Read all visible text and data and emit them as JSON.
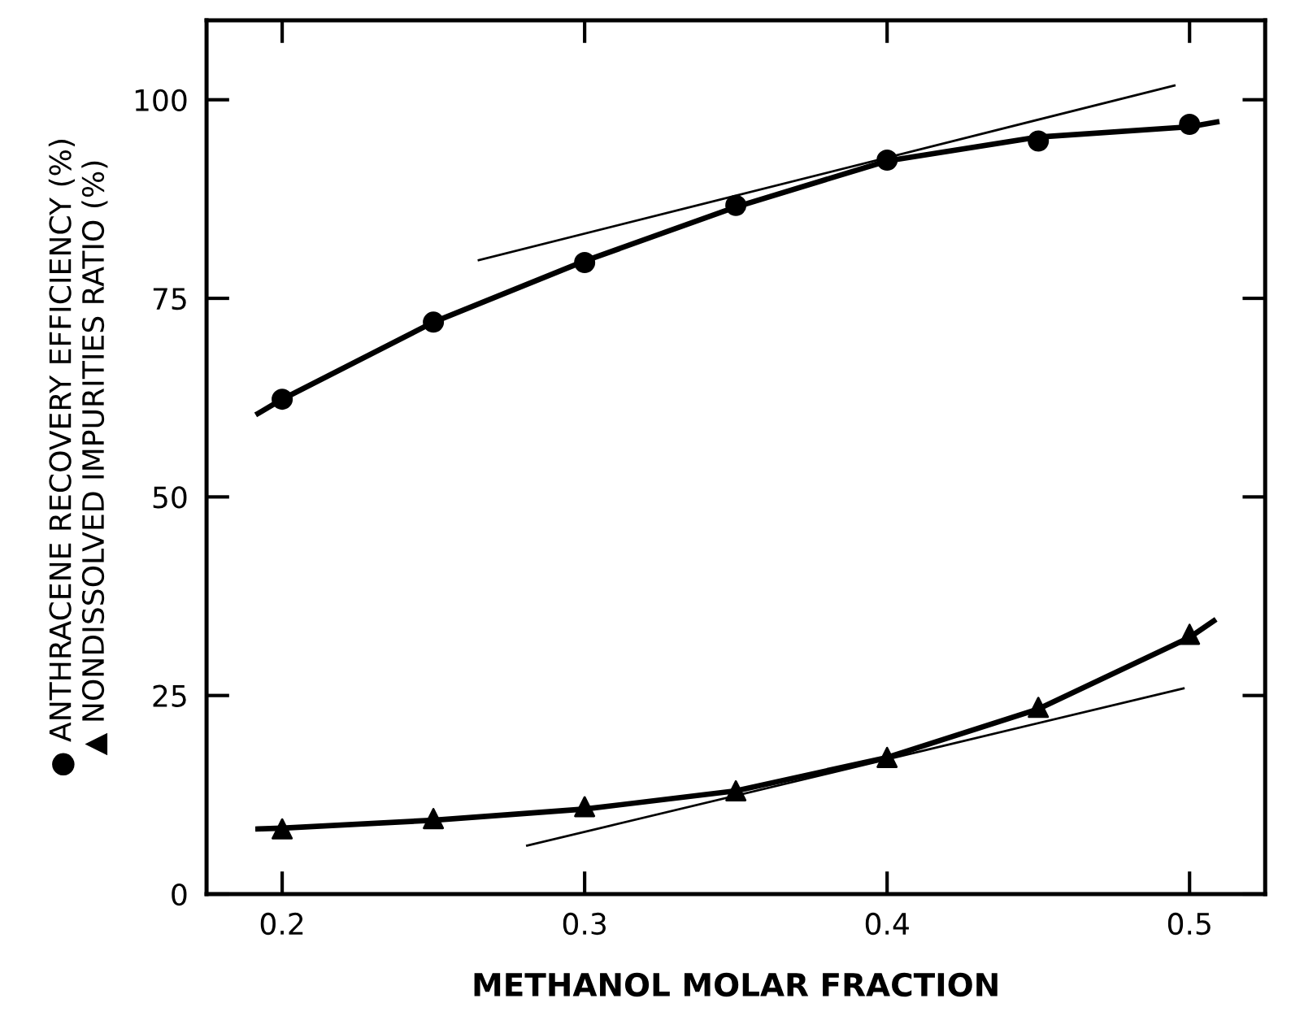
{
  "chart_data": {
    "type": "scatter",
    "xlabel": "METHANOL MOLAR FRACTION",
    "ylabel": "● ANTHRACENE RECOVERY EFFICIENCY (%)\n▲ NONDISSOLVED IMPURITIES RATIO (%)",
    "xlim": [
      0.175,
      0.525
    ],
    "xticks": [
      0.2,
      0.3,
      0.4,
      0.5
    ],
    "ylim": [
      0,
      110
    ],
    "yticks": [
      0,
      25,
      50,
      75,
      100
    ],
    "grid": false,
    "legend": false,
    "series": [
      {
        "marker": "circle",
        "color": "#000000",
        "x": [
          0.2,
          0.25,
          0.3,
          0.35,
          0.4,
          0.45,
          0.5
        ],
        "values": [
          62.3,
          72,
          79.5,
          86.7,
          92.4,
          94.8,
          96.9
        ]
      },
      {
        "marker": "triangle",
        "color": "#000000",
        "x": [
          0.2,
          0.25,
          0.3,
          0.35,
          0.4,
          0.45,
          0.5
        ],
        "values": [
          8.2,
          9.5,
          11,
          13,
          17.2,
          23.5,
          32.7
        ]
      },
      {
        "type": "line",
        "marker": "none",
        "line_style": "solid",
        "color": "#000000",
        "x": [
          0.192,
          0.2,
          0.25,
          0.3,
          0.35,
          0.4,
          0.45,
          0.5,
          0.509
        ],
        "values": [
          60.5,
          62.3,
          72,
          79.7,
          86.5,
          92.3,
          95.3,
          96.6,
          97.2
        ]
      },
      {
        "type": "line",
        "marker": "none",
        "line_style": "solid",
        "color": "#000000",
        "x": [
          0.192,
          0.2,
          0.25,
          0.3,
          0.35,
          0.4,
          0.45,
          0.5,
          0.508
        ],
        "values": [
          8.2,
          8.3,
          9.3,
          10.7,
          13,
          17.2,
          23.3,
          32.3,
          34.4
        ]
      },
      {
        "type": "line",
        "marker": "none",
        "line_style": "solid",
        "color": "#000000",
        "x": [
          0.265,
          0.495
        ],
        "values": [
          79.8,
          101.8
        ]
      },
      {
        "type": "line",
        "marker": "none",
        "line_style": "solid",
        "color": "#000000",
        "x": [
          0.281,
          0.498
        ],
        "values": [
          6.1,
          25.9
        ]
      }
    ]
  }
}
